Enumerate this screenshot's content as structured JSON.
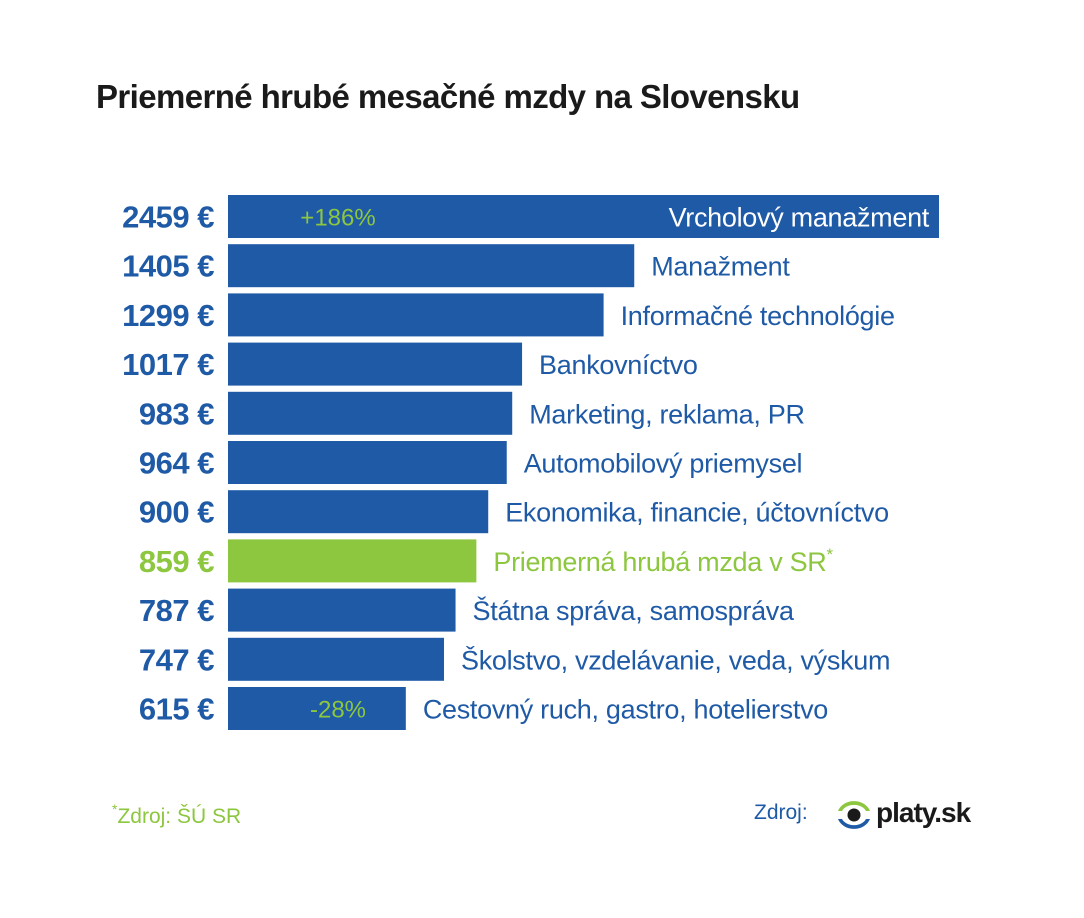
{
  "title": "Priemerné hrubé mesačné mzdy na Slovensku",
  "chart_data": {
    "type": "bar",
    "orientation": "horizontal",
    "title": "Priemerné hrubé mesačné mzdy na Slovensku",
    "unit": "€",
    "categories": [
      "Vrcholový manažment",
      "Manažment",
      "Informačné technológie",
      "Bankovníctvo",
      "Marketing, reklama, PR",
      "Automobilový priemysel",
      "Ekonomika, financie, účtovníctvo",
      "Priemerná hrubá mzda v SR",
      "Štátna správa, samospráva",
      "Školstvo, vzdelávanie, veda, výskum",
      "Cestovný ruch, gastro, hotelierstvo"
    ],
    "values": [
      2459,
      1405,
      1299,
      1017,
      983,
      964,
      900,
      859,
      787,
      747,
      615
    ],
    "value_labels": [
      "2459 €",
      "1405 €",
      "1299 €",
      "1017 €",
      "983 €",
      "964 €",
      "900 €",
      "859 €",
      "787 €",
      "747 €",
      "615 €"
    ],
    "highlight_index": 7,
    "highlight_marker": "*",
    "annotations": [
      {
        "index": 0,
        "text": "+186%"
      },
      {
        "index": 10,
        "text": "-28%"
      }
    ],
    "xlim": [
      0,
      2459
    ],
    "grid": false,
    "legend": "none"
  },
  "colors": {
    "bar": "#1f5aa6",
    "highlight": "#8dc63f",
    "label_text": "#1f5aa6",
    "label_inside": "#ffffff",
    "annotation": "#8dc63f",
    "title": "#1a1a1a"
  },
  "footer": {
    "left_marker": "*",
    "left_text": "Zdroj:  ŠÚ SR",
    "right_text": "Zdroj:",
    "logo_text": "platy.sk",
    "logo_icon": "eye-icon"
  }
}
